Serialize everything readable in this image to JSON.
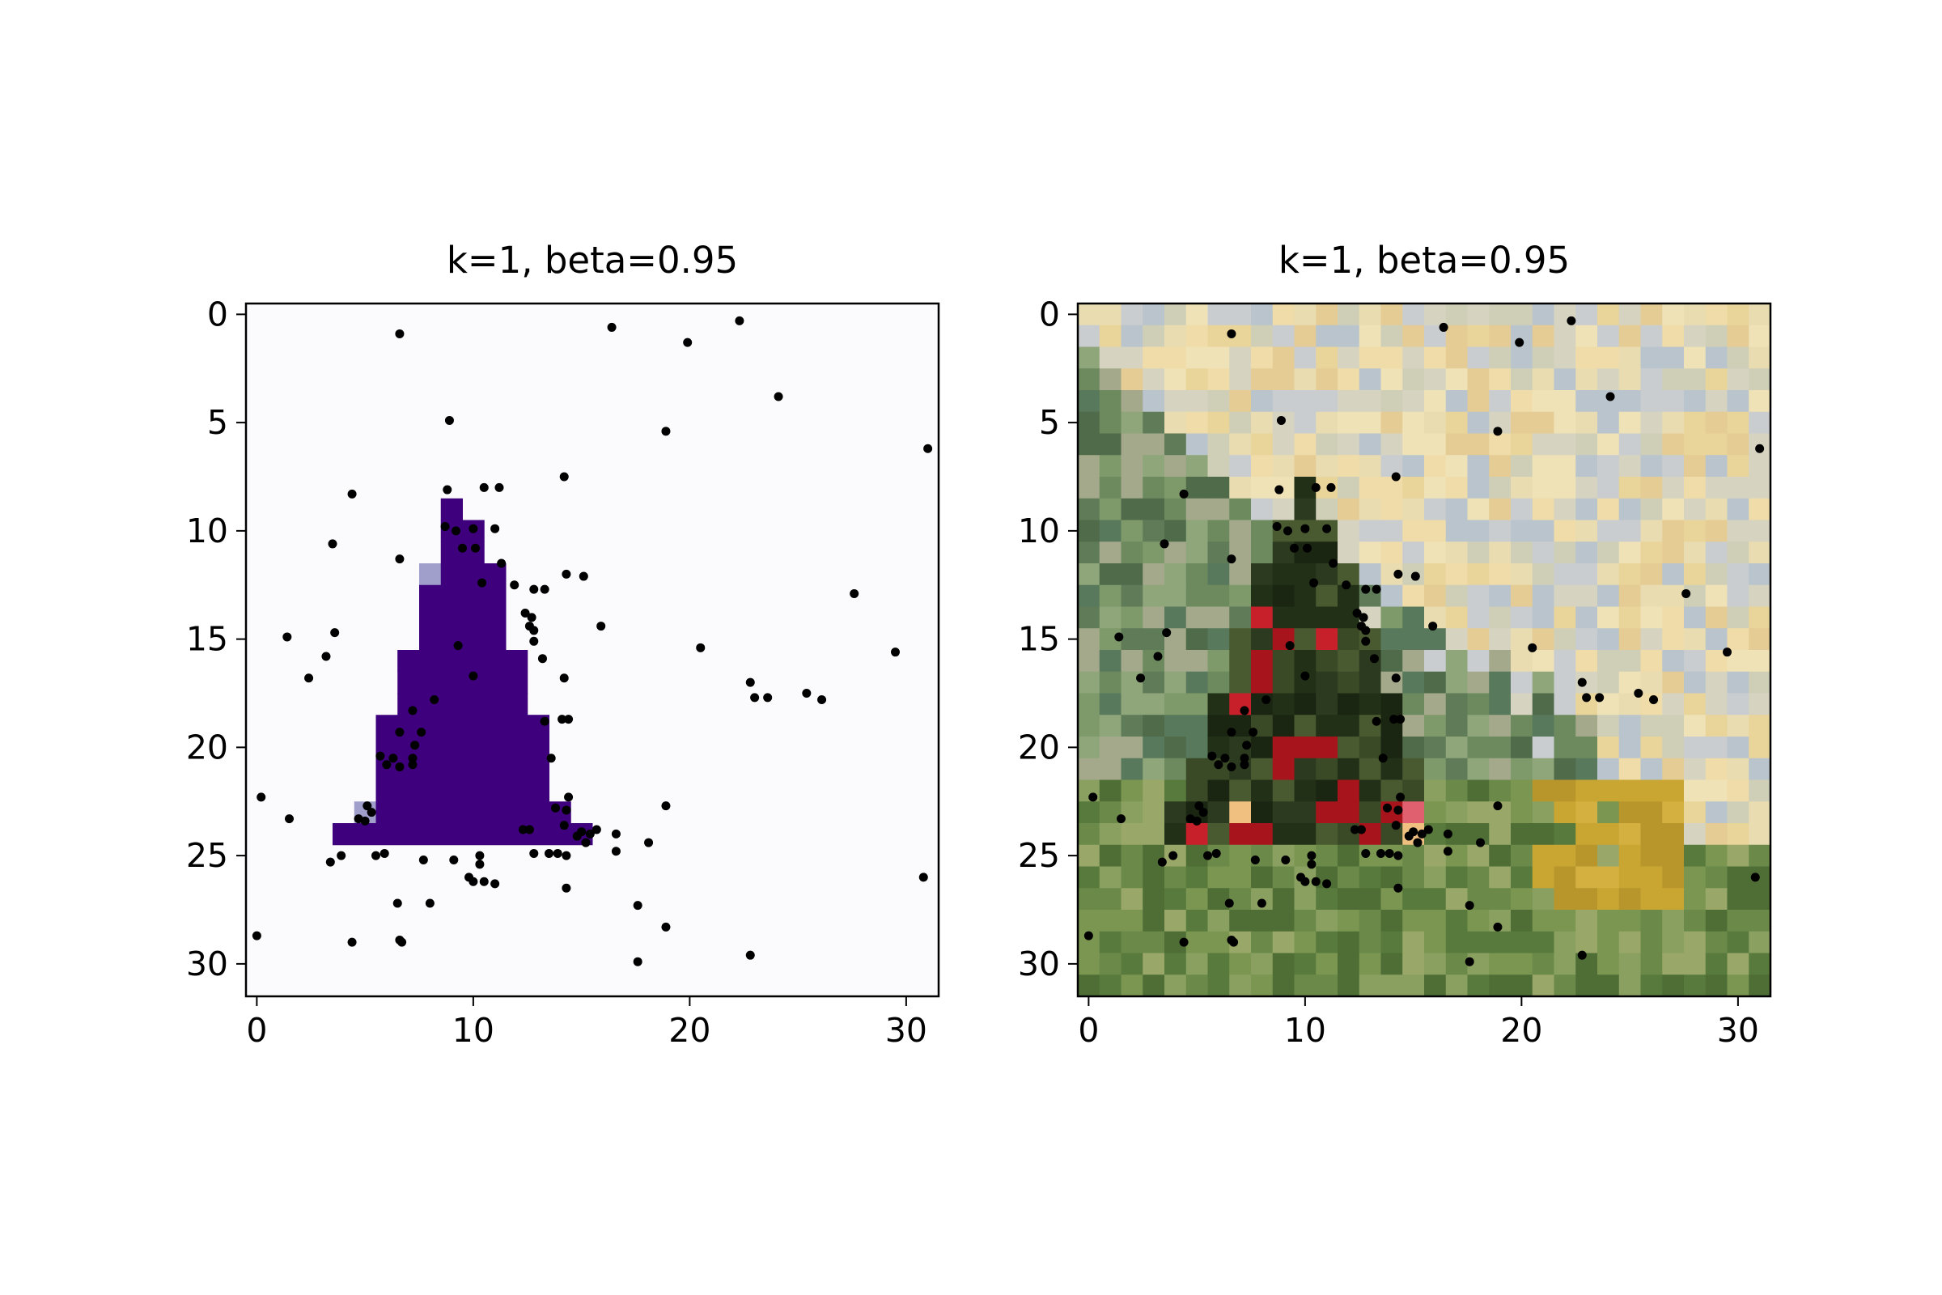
{
  "chart_data": [
    {
      "type": "heatmap",
      "title": "k=1, beta=0.95",
      "xticks": [
        0,
        10,
        20,
        30
      ],
      "yticks": [
        0,
        5,
        10,
        15,
        20,
        25,
        30
      ],
      "xlim": [
        -0.5,
        31.5
      ],
      "ylim": [
        31.5,
        -0.5
      ],
      "grid": false,
      "image": "binary mask of a triangular tree shape on a near-white background",
      "background_color": "#fbfbfd",
      "mask_color": "#3f007d",
      "mask_edge_color": "#a09fcb",
      "mask_rows": [
        {
          "row": 9,
          "cols": [
            9,
            9
          ]
        },
        {
          "row": 10,
          "cols": [
            9,
            10
          ]
        },
        {
          "row": 11,
          "cols": [
            9,
            10
          ]
        },
        {
          "row": 12,
          "cols": [
            9,
            11
          ]
        },
        {
          "row": 13,
          "cols": [
            8,
            11
          ]
        },
        {
          "row": 14,
          "cols": [
            8,
            11
          ]
        },
        {
          "row": 15,
          "cols": [
            8,
            11
          ]
        },
        {
          "row": 16,
          "cols": [
            7,
            12
          ]
        },
        {
          "row": 17,
          "cols": [
            7,
            12
          ]
        },
        {
          "row": 18,
          "cols": [
            7,
            12
          ]
        },
        {
          "row": 19,
          "cols": [
            6,
            13
          ]
        },
        {
          "row": 20,
          "cols": [
            6,
            13
          ]
        },
        {
          "row": 21,
          "cols": [
            6,
            13
          ]
        },
        {
          "row": 22,
          "cols": [
            6,
            13
          ]
        },
        {
          "row": 23,
          "cols": [
            6,
            14
          ]
        },
        {
          "row": 24,
          "cols": [
            4,
            15
          ]
        }
      ],
      "mask_edge_cells": [
        [
          12,
          8
        ],
        [
          16,
          7
        ],
        [
          19,
          13
        ],
        [
          23,
          5
        ]
      ],
      "points": [
        [
          6.6,
          0.9
        ],
        [
          16.4,
          0.6
        ],
        [
          22.3,
          0.3
        ],
        [
          19.9,
          1.3
        ],
        [
          24.1,
          3.8
        ],
        [
          8.9,
          4.9
        ],
        [
          18.9,
          5.4
        ],
        [
          31.0,
          6.2
        ],
        [
          14.2,
          7.5
        ],
        [
          4.4,
          8.3
        ],
        [
          8.8,
          8.1
        ],
        [
          10.5,
          8.0
        ],
        [
          11.2,
          8.0
        ],
        [
          8.7,
          9.8
        ],
        [
          9.2,
          10.0
        ],
        [
          10.0,
          9.9
        ],
        [
          11.0,
          9.9
        ],
        [
          3.5,
          10.6
        ],
        [
          9.5,
          10.8
        ],
        [
          10.1,
          10.8
        ],
        [
          6.6,
          11.3
        ],
        [
          11.3,
          11.5
        ],
        [
          10.4,
          12.4
        ],
        [
          11.9,
          12.5
        ],
        [
          12.8,
          12.7
        ],
        [
          13.3,
          12.7
        ],
        [
          14.3,
          12.0
        ],
        [
          15.1,
          12.1
        ],
        [
          27.6,
          12.9
        ],
        [
          12.4,
          13.8
        ],
        [
          12.7,
          14.0
        ],
        [
          12.6,
          14.4
        ],
        [
          12.8,
          14.6
        ],
        [
          15.9,
          14.4
        ],
        [
          1.4,
          14.9
        ],
        [
          3.6,
          14.7
        ],
        [
          9.3,
          15.3
        ],
        [
          12.8,
          15.1
        ],
        [
          20.5,
          15.4
        ],
        [
          29.5,
          15.6
        ],
        [
          3.2,
          15.8
        ],
        [
          13.2,
          15.9
        ],
        [
          2.4,
          16.8
        ],
        [
          10.0,
          16.7
        ],
        [
          14.2,
          16.8
        ],
        [
          22.8,
          17.0
        ],
        [
          23.0,
          17.7
        ],
        [
          23.6,
          17.7
        ],
        [
          25.4,
          17.5
        ],
        [
          26.1,
          17.8
        ],
        [
          8.2,
          17.8
        ],
        [
          7.2,
          18.3
        ],
        [
          6.6,
          19.3
        ],
        [
          7.6,
          19.3
        ],
        [
          13.3,
          18.8
        ],
        [
          14.1,
          18.7
        ],
        [
          14.4,
          18.7
        ],
        [
          7.3,
          19.9
        ],
        [
          13.6,
          20.5
        ],
        [
          5.7,
          20.4
        ],
        [
          6.3,
          20.5
        ],
        [
          6.6,
          20.9
        ],
        [
          7.2,
          20.5
        ],
        [
          6.0,
          20.8
        ],
        [
          7.2,
          20.8
        ],
        [
          14.4,
          22.3
        ],
        [
          0.2,
          22.3
        ],
        [
          18.9,
          22.7
        ],
        [
          5.1,
          22.7
        ],
        [
          5.3,
          23.0
        ],
        [
          13.8,
          22.8
        ],
        [
          14.3,
          22.9
        ],
        [
          1.5,
          23.3
        ],
        [
          4.7,
          23.3
        ],
        [
          5.0,
          23.4
        ],
        [
          14.2,
          23.6
        ],
        [
          15.0,
          23.9
        ],
        [
          15.4,
          24.0
        ],
        [
          12.3,
          23.8
        ],
        [
          12.6,
          23.8
        ],
        [
          15.7,
          23.8
        ],
        [
          15.2,
          24.4
        ],
        [
          16.6,
          24.0
        ],
        [
          14.8,
          24.1
        ],
        [
          16.6,
          24.8
        ],
        [
          18.1,
          24.4
        ],
        [
          3.9,
          25.0
        ],
        [
          3.4,
          25.3
        ],
        [
          5.5,
          25.0
        ],
        [
          5.9,
          24.9
        ],
        [
          7.7,
          25.2
        ],
        [
          9.1,
          25.2
        ],
        [
          10.3,
          25.0
        ],
        [
          10.3,
          25.4
        ],
        [
          12.8,
          24.9
        ],
        [
          13.5,
          24.9
        ],
        [
          13.9,
          24.9
        ],
        [
          14.3,
          25.0
        ],
        [
          9.8,
          26.0
        ],
        [
          10.0,
          26.2
        ],
        [
          10.5,
          26.2
        ],
        [
          11.0,
          26.3
        ],
        [
          14.3,
          26.5
        ],
        [
          30.8,
          26.0
        ],
        [
          6.5,
          27.2
        ],
        [
          8.0,
          27.2
        ],
        [
          17.6,
          27.3
        ],
        [
          18.9,
          28.3
        ],
        [
          0.0,
          28.7
        ],
        [
          4.4,
          29.0
        ],
        [
          6.6,
          28.9
        ],
        [
          6.7,
          29.0
        ],
        [
          22.8,
          29.6
        ],
        [
          17.6,
          29.9
        ]
      ],
      "point_color": "#000000"
    },
    {
      "type": "heatmap",
      "title": "k=1, beta=0.95",
      "xticks": [
        0,
        10,
        20,
        30
      ],
      "yticks": [
        0,
        5,
        10,
        15,
        20,
        25,
        30
      ],
      "xlim": [
        -0.5,
        31.5
      ],
      "ylim": [
        31.5,
        -0.5
      ],
      "grid": false,
      "image": "pixelated 32x32 photo: dark green Christmas tree with red ornaments against pale sky, green grass at bottom",
      "palette": {
        "sky": [
          "#e8dcb0",
          "#efe2b6",
          "#e9d49a",
          "#d6d4c0",
          "#c9cdd0",
          "#b9c4cc",
          "#e5cc94",
          "#f0dca8",
          "#cfcfb8"
        ],
        "trees_left": [
          "#5f7b58",
          "#6d8a5f",
          "#4f6b4a",
          "#7f9a6a",
          "#8fa57a",
          "#a3a98a",
          "#58795b"
        ],
        "tree": [
          "#2c3a1f",
          "#213017",
          "#3b4a26",
          "#1a2612",
          "#4a5a30"
        ],
        "ornament": [
          "#c8202a",
          "#a8141c",
          "#e06070",
          "#f0c080"
        ],
        "grass": [
          "#6b8a4a",
          "#7a9650",
          "#587a3c",
          "#8aa060",
          "#4e6e36",
          "#99a868"
        ],
        "gold": [
          "#c9a632",
          "#b8962c",
          "#d4b040"
        ]
      },
      "points": [
        [
          6.6,
          0.9
        ],
        [
          16.4,
          0.6
        ],
        [
          22.3,
          0.3
        ],
        [
          19.9,
          1.3
        ],
        [
          24.1,
          3.8
        ],
        [
          8.9,
          4.9
        ],
        [
          18.9,
          5.4
        ],
        [
          31.0,
          6.2
        ],
        [
          14.2,
          7.5
        ],
        [
          4.4,
          8.3
        ],
        [
          8.8,
          8.1
        ],
        [
          10.5,
          8.0
        ],
        [
          11.2,
          8.0
        ],
        [
          8.7,
          9.8
        ],
        [
          9.2,
          10.0
        ],
        [
          10.0,
          9.9
        ],
        [
          11.0,
          9.9
        ],
        [
          3.5,
          10.6
        ],
        [
          9.5,
          10.8
        ],
        [
          10.1,
          10.8
        ],
        [
          6.6,
          11.3
        ],
        [
          11.3,
          11.5
        ],
        [
          10.4,
          12.4
        ],
        [
          11.9,
          12.5
        ],
        [
          12.8,
          12.7
        ],
        [
          13.3,
          12.7
        ],
        [
          14.3,
          12.0
        ],
        [
          15.1,
          12.1
        ],
        [
          27.6,
          12.9
        ],
        [
          12.4,
          13.8
        ],
        [
          12.7,
          14.0
        ],
        [
          12.6,
          14.4
        ],
        [
          12.8,
          14.6
        ],
        [
          15.9,
          14.4
        ],
        [
          1.4,
          14.9
        ],
        [
          3.6,
          14.7
        ],
        [
          9.3,
          15.3
        ],
        [
          12.8,
          15.1
        ],
        [
          20.5,
          15.4
        ],
        [
          29.5,
          15.6
        ],
        [
          3.2,
          15.8
        ],
        [
          13.2,
          15.9
        ],
        [
          2.4,
          16.8
        ],
        [
          10.0,
          16.7
        ],
        [
          14.2,
          16.8
        ],
        [
          22.8,
          17.0
        ],
        [
          23.0,
          17.7
        ],
        [
          23.6,
          17.7
        ],
        [
          25.4,
          17.5
        ],
        [
          26.1,
          17.8
        ],
        [
          8.2,
          17.8
        ],
        [
          7.2,
          18.3
        ],
        [
          6.6,
          19.3
        ],
        [
          7.6,
          19.3
        ],
        [
          13.3,
          18.8
        ],
        [
          14.1,
          18.7
        ],
        [
          14.4,
          18.7
        ],
        [
          7.3,
          19.9
        ],
        [
          13.6,
          20.5
        ],
        [
          5.7,
          20.4
        ],
        [
          6.3,
          20.5
        ],
        [
          6.6,
          20.9
        ],
        [
          7.2,
          20.5
        ],
        [
          6.0,
          20.8
        ],
        [
          7.2,
          20.8
        ],
        [
          14.4,
          22.3
        ],
        [
          0.2,
          22.3
        ],
        [
          18.9,
          22.7
        ],
        [
          5.1,
          22.7
        ],
        [
          5.3,
          23.0
        ],
        [
          13.8,
          22.8
        ],
        [
          14.3,
          22.9
        ],
        [
          1.5,
          23.3
        ],
        [
          4.7,
          23.3
        ],
        [
          5.0,
          23.4
        ],
        [
          14.2,
          23.6
        ],
        [
          15.0,
          23.9
        ],
        [
          15.4,
          24.0
        ],
        [
          12.3,
          23.8
        ],
        [
          12.6,
          23.8
        ],
        [
          15.7,
          23.8
        ],
        [
          15.2,
          24.4
        ],
        [
          16.6,
          24.0
        ],
        [
          14.8,
          24.1
        ],
        [
          16.6,
          24.8
        ],
        [
          18.1,
          24.4
        ],
        [
          3.9,
          25.0
        ],
        [
          3.4,
          25.3
        ],
        [
          5.5,
          25.0
        ],
        [
          5.9,
          24.9
        ],
        [
          7.7,
          25.2
        ],
        [
          9.1,
          25.2
        ],
        [
          10.3,
          25.0
        ],
        [
          10.3,
          25.4
        ],
        [
          12.8,
          24.9
        ],
        [
          13.5,
          24.9
        ],
        [
          13.9,
          24.9
        ],
        [
          14.3,
          25.0
        ],
        [
          9.8,
          26.0
        ],
        [
          10.0,
          26.2
        ],
        [
          10.5,
          26.2
        ],
        [
          11.0,
          26.3
        ],
        [
          14.3,
          26.5
        ],
        [
          30.8,
          26.0
        ],
        [
          6.5,
          27.2
        ],
        [
          8.0,
          27.2
        ],
        [
          17.6,
          27.3
        ],
        [
          18.9,
          28.3
        ],
        [
          0.0,
          28.7
        ],
        [
          4.4,
          29.0
        ],
        [
          6.6,
          28.9
        ],
        [
          6.7,
          29.0
        ],
        [
          22.8,
          29.6
        ],
        [
          17.6,
          29.9
        ]
      ],
      "point_color": "#000000"
    }
  ]
}
